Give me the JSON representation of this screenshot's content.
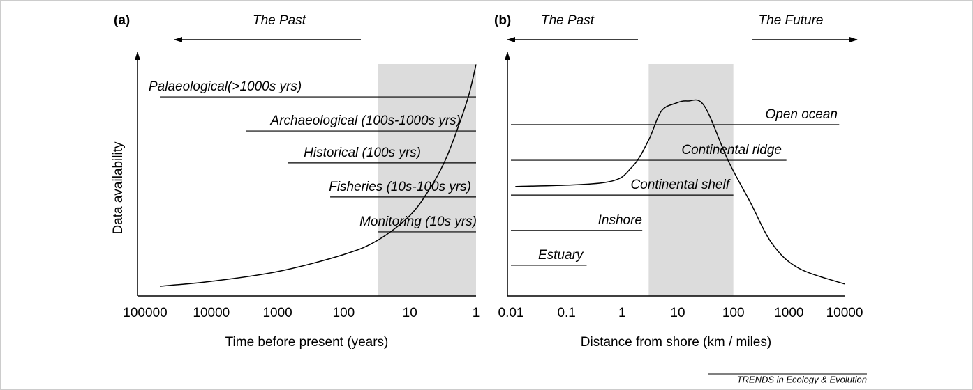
{
  "chart_data": [
    {
      "type": "line",
      "panel": "(a)",
      "arrows": [
        "The Past"
      ],
      "x_label": "Time before present (years)",
      "y_label": "Data availability",
      "xlog": true,
      "xlim": [
        100000,
        1
      ],
      "xticks": [
        100000,
        10000,
        1000,
        100,
        10,
        1
      ],
      "ylim": [
        0,
        100
      ],
      "color": "#000000",
      "shade_color": "#dcdcdc",
      "x": [
        60000,
        10000,
        1000,
        100,
        30,
        10,
        5,
        3,
        2,
        1.3,
        1
      ],
      "values": [
        4,
        6,
        10,
        17,
        23,
        33,
        44,
        55,
        67,
        82,
        95
      ],
      "shaded": [
        30,
        1
      ],
      "levels": [
        {
          "label": "Palaeological(>1000s yrs)",
          "xlim": [
            60000,
            1
          ],
          "value": 81.7
        },
        {
          "label": "Archaeological (100s-1000s yrs)",
          "xlim": [
            3000,
            1
          ],
          "value": 67.7
        },
        {
          "label": "Historical (100s yrs)",
          "xlim": [
            700,
            1
          ],
          "value": 54.6
        },
        {
          "label": "Fisheries (10s-100s yrs)",
          "xlim": [
            160,
            1
          ],
          "value": 40.6
        },
        {
          "label": "Monitoring (10s yrs)",
          "xlim": [
            30,
            1
          ],
          "value": 26.3
        }
      ]
    },
    {
      "type": "line",
      "panel": "(b)",
      "arrows": [
        "The Past",
        "The Future"
      ],
      "x_label": "Distance from shore (km / miles)",
      "xlog": true,
      "xlim": [
        0.01,
        10000
      ],
      "xticks": [
        0.01,
        0.1,
        1,
        10,
        100,
        1000,
        10000
      ],
      "ylim": [
        0,
        100
      ],
      "color": "#000000",
      "shade_color": "#dcdcdc",
      "x": [
        0.012,
        0.5,
        1.5,
        3,
        5,
        9,
        15,
        30,
        80,
        200,
        500,
        1500,
        10000
      ],
      "values": [
        44.9,
        46.6,
        52.9,
        64,
        75.7,
        79,
        80,
        78,
        55.7,
        38.6,
        21.4,
        11.4,
        4.9
      ],
      "shaded": [
        3,
        100
      ],
      "levels": [
        {
          "label": "Open ocean",
          "xlim": [
            0.01,
            8000
          ],
          "value": 70.3
        },
        {
          "label": "Continental ridge",
          "xlim": [
            0.01,
            900
          ],
          "value": 55.7
        },
        {
          "label": "Continental shelf",
          "xlim": [
            0.01,
            100
          ],
          "value": 41.4
        },
        {
          "label": "Inshore",
          "xlim": [
            0.01,
            2.3
          ],
          "value": 26.9
        },
        {
          "label": "Estuary",
          "xlim": [
            0.01,
            0.23
          ],
          "value": 12.6
        }
      ]
    }
  ],
  "footer": "TRENDS in Ecology & Evolution"
}
